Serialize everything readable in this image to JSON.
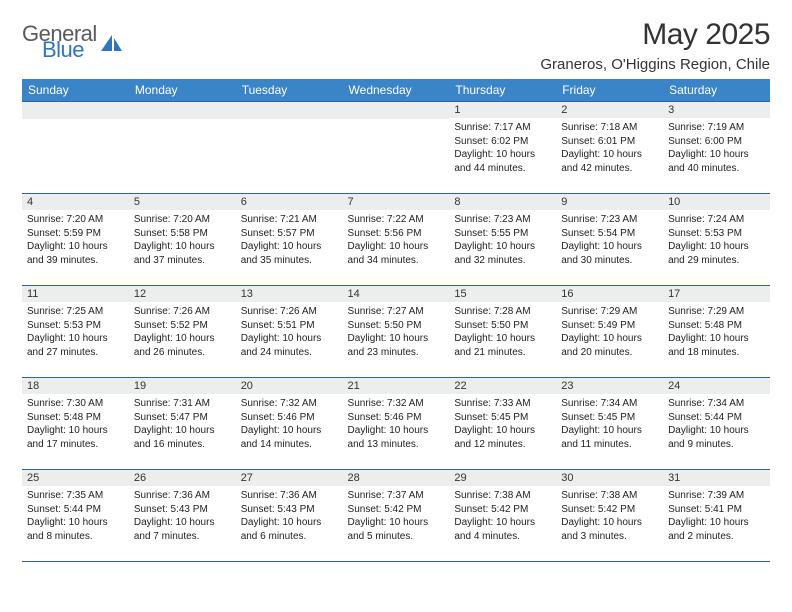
{
  "logo": {
    "general": "General",
    "blue": "Blue"
  },
  "title": "May 2025",
  "location": "Graneros, O'Higgins Region, Chile",
  "colors": {
    "header_bg": "#3a84c8",
    "header_text": "#ffffff",
    "border": "#2f64a0",
    "daynum_bg": "#eceded",
    "text": "#222222",
    "logo_gray": "#5a5a5a",
    "logo_blue": "#2f77bc"
  },
  "weekdays": [
    "Sunday",
    "Monday",
    "Tuesday",
    "Wednesday",
    "Thursday",
    "Friday",
    "Saturday"
  ],
  "weeks": [
    [
      {
        "n": "",
        "lines": []
      },
      {
        "n": "",
        "lines": []
      },
      {
        "n": "",
        "lines": []
      },
      {
        "n": "",
        "lines": []
      },
      {
        "n": "1",
        "lines": [
          "Sunrise: 7:17 AM",
          "Sunset: 6:02 PM",
          "Daylight: 10 hours and 44 minutes."
        ]
      },
      {
        "n": "2",
        "lines": [
          "Sunrise: 7:18 AM",
          "Sunset: 6:01 PM",
          "Daylight: 10 hours and 42 minutes."
        ]
      },
      {
        "n": "3",
        "lines": [
          "Sunrise: 7:19 AM",
          "Sunset: 6:00 PM",
          "Daylight: 10 hours and 40 minutes."
        ]
      }
    ],
    [
      {
        "n": "4",
        "lines": [
          "Sunrise: 7:20 AM",
          "Sunset: 5:59 PM",
          "Daylight: 10 hours and 39 minutes."
        ]
      },
      {
        "n": "5",
        "lines": [
          "Sunrise: 7:20 AM",
          "Sunset: 5:58 PM",
          "Daylight: 10 hours and 37 minutes."
        ]
      },
      {
        "n": "6",
        "lines": [
          "Sunrise: 7:21 AM",
          "Sunset: 5:57 PM",
          "Daylight: 10 hours and 35 minutes."
        ]
      },
      {
        "n": "7",
        "lines": [
          "Sunrise: 7:22 AM",
          "Sunset: 5:56 PM",
          "Daylight: 10 hours and 34 minutes."
        ]
      },
      {
        "n": "8",
        "lines": [
          "Sunrise: 7:23 AM",
          "Sunset: 5:55 PM",
          "Daylight: 10 hours and 32 minutes."
        ]
      },
      {
        "n": "9",
        "lines": [
          "Sunrise: 7:23 AM",
          "Sunset: 5:54 PM",
          "Daylight: 10 hours and 30 minutes."
        ]
      },
      {
        "n": "10",
        "lines": [
          "Sunrise: 7:24 AM",
          "Sunset: 5:53 PM",
          "Daylight: 10 hours and 29 minutes."
        ]
      }
    ],
    [
      {
        "n": "11",
        "lines": [
          "Sunrise: 7:25 AM",
          "Sunset: 5:53 PM",
          "Daylight: 10 hours and 27 minutes."
        ]
      },
      {
        "n": "12",
        "lines": [
          "Sunrise: 7:26 AM",
          "Sunset: 5:52 PM",
          "Daylight: 10 hours and 26 minutes."
        ]
      },
      {
        "n": "13",
        "lines": [
          "Sunrise: 7:26 AM",
          "Sunset: 5:51 PM",
          "Daylight: 10 hours and 24 minutes."
        ]
      },
      {
        "n": "14",
        "lines": [
          "Sunrise: 7:27 AM",
          "Sunset: 5:50 PM",
          "Daylight: 10 hours and 23 minutes."
        ]
      },
      {
        "n": "15",
        "lines": [
          "Sunrise: 7:28 AM",
          "Sunset: 5:50 PM",
          "Daylight: 10 hours and 21 minutes."
        ]
      },
      {
        "n": "16",
        "lines": [
          "Sunrise: 7:29 AM",
          "Sunset: 5:49 PM",
          "Daylight: 10 hours and 20 minutes."
        ]
      },
      {
        "n": "17",
        "lines": [
          "Sunrise: 7:29 AM",
          "Sunset: 5:48 PM",
          "Daylight: 10 hours and 18 minutes."
        ]
      }
    ],
    [
      {
        "n": "18",
        "lines": [
          "Sunrise: 7:30 AM",
          "Sunset: 5:48 PM",
          "Daylight: 10 hours and 17 minutes."
        ]
      },
      {
        "n": "19",
        "lines": [
          "Sunrise: 7:31 AM",
          "Sunset: 5:47 PM",
          "Daylight: 10 hours and 16 minutes."
        ]
      },
      {
        "n": "20",
        "lines": [
          "Sunrise: 7:32 AM",
          "Sunset: 5:46 PM",
          "Daylight: 10 hours and 14 minutes."
        ]
      },
      {
        "n": "21",
        "lines": [
          "Sunrise: 7:32 AM",
          "Sunset: 5:46 PM",
          "Daylight: 10 hours and 13 minutes."
        ]
      },
      {
        "n": "22",
        "lines": [
          "Sunrise: 7:33 AM",
          "Sunset: 5:45 PM",
          "Daylight: 10 hours and 12 minutes."
        ]
      },
      {
        "n": "23",
        "lines": [
          "Sunrise: 7:34 AM",
          "Sunset: 5:45 PM",
          "Daylight: 10 hours and 11 minutes."
        ]
      },
      {
        "n": "24",
        "lines": [
          "Sunrise: 7:34 AM",
          "Sunset: 5:44 PM",
          "Daylight: 10 hours and 9 minutes."
        ]
      }
    ],
    [
      {
        "n": "25",
        "lines": [
          "Sunrise: 7:35 AM",
          "Sunset: 5:44 PM",
          "Daylight: 10 hours and 8 minutes."
        ]
      },
      {
        "n": "26",
        "lines": [
          "Sunrise: 7:36 AM",
          "Sunset: 5:43 PM",
          "Daylight: 10 hours and 7 minutes."
        ]
      },
      {
        "n": "27",
        "lines": [
          "Sunrise: 7:36 AM",
          "Sunset: 5:43 PM",
          "Daylight: 10 hours and 6 minutes."
        ]
      },
      {
        "n": "28",
        "lines": [
          "Sunrise: 7:37 AM",
          "Sunset: 5:42 PM",
          "Daylight: 10 hours and 5 minutes."
        ]
      },
      {
        "n": "29",
        "lines": [
          "Sunrise: 7:38 AM",
          "Sunset: 5:42 PM",
          "Daylight: 10 hours and 4 minutes."
        ]
      },
      {
        "n": "30",
        "lines": [
          "Sunrise: 7:38 AM",
          "Sunset: 5:42 PM",
          "Daylight: 10 hours and 3 minutes."
        ]
      },
      {
        "n": "31",
        "lines": [
          "Sunrise: 7:39 AM",
          "Sunset: 5:41 PM",
          "Daylight: 10 hours and 2 minutes."
        ]
      }
    ]
  ]
}
